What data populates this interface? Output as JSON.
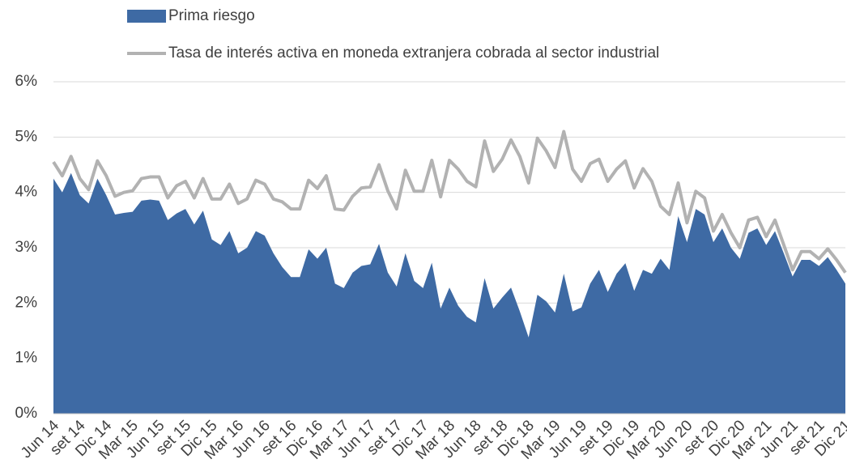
{
  "chart_data": {
    "type": "area-line",
    "categories": [
      "Jun 14",
      null,
      null,
      "set 14",
      null,
      null,
      "Dic 14",
      null,
      null,
      "Mar 15",
      null,
      null,
      "Jun 15",
      null,
      null,
      "set 15",
      null,
      null,
      "Dic 15",
      null,
      null,
      "Mar 16",
      null,
      null,
      "Jun 16",
      null,
      null,
      "set 16",
      null,
      null,
      "Dic 16",
      null,
      null,
      "Mar 17",
      null,
      null,
      "Jun 17",
      null,
      null,
      "set 17",
      null,
      null,
      "Dic 17",
      null,
      null,
      "Mar 18",
      null,
      null,
      "Jun 18",
      null,
      null,
      "set 18",
      null,
      null,
      "Dic 18",
      null,
      null,
      "Mar 19",
      null,
      null,
      "Jun 19",
      null,
      null,
      "set 19",
      null,
      null,
      "Dic 19",
      null,
      null,
      "Mar 20",
      null,
      null,
      "Jun 20",
      null,
      null,
      "set 20",
      null,
      null,
      "Dic 20",
      null,
      null,
      "Mar 21",
      null,
      null,
      "Jun 21",
      null,
      null,
      "set 21",
      null,
      null,
      "Dic 21"
    ],
    "series": [
      {
        "name": "Prima riesgo",
        "color": "#3e6aa4",
        "kind": "area",
        "values": [
          4.25,
          4.0,
          4.35,
          3.95,
          3.8,
          4.25,
          3.95,
          3.6,
          3.63,
          3.65,
          3.85,
          3.87,
          3.85,
          3.5,
          3.62,
          3.7,
          3.42,
          3.67,
          3.15,
          3.05,
          3.3,
          2.9,
          3.0,
          3.3,
          3.22,
          2.9,
          2.65,
          2.47,
          2.47,
          2.97,
          2.8,
          3.0,
          2.35,
          2.27,
          2.55,
          2.67,
          2.7,
          3.07,
          2.55,
          2.3,
          2.9,
          2.4,
          2.27,
          2.73,
          1.9,
          2.28,
          1.95,
          1.75,
          1.65,
          2.45,
          1.9,
          2.1,
          2.28,
          1.85,
          1.38,
          2.15,
          2.03,
          1.83,
          2.53,
          1.85,
          1.92,
          2.35,
          2.6,
          2.2,
          2.53,
          2.72,
          2.22,
          2.6,
          2.53,
          2.8,
          2.6,
          3.57,
          3.1,
          3.7,
          3.6,
          3.1,
          3.35,
          3.0,
          2.8,
          3.27,
          3.35,
          3.05,
          3.3,
          2.9,
          2.48,
          2.78,
          2.78,
          2.67,
          2.83,
          2.6,
          2.35
        ]
      },
      {
        "name": "Tasa de interés activa en moneda extranjera cobrada al sector industrial",
        "color": "#b2b2b2",
        "kind": "line",
        "values": [
          4.55,
          4.3,
          4.65,
          4.25,
          4.05,
          4.57,
          4.3,
          3.93,
          4.0,
          4.03,
          4.25,
          4.28,
          4.28,
          3.9,
          4.12,
          4.2,
          3.9,
          4.25,
          3.88,
          3.88,
          4.15,
          3.8,
          3.88,
          4.22,
          4.15,
          3.88,
          3.83,
          3.7,
          3.7,
          4.22,
          4.07,
          4.3,
          3.7,
          3.68,
          3.93,
          4.08,
          4.1,
          4.5,
          4.03,
          3.7,
          4.4,
          4.02,
          4.02,
          4.58,
          3.92,
          4.58,
          4.42,
          4.2,
          4.1,
          4.93,
          4.38,
          4.6,
          4.95,
          4.65,
          4.17,
          4.98,
          4.75,
          4.45,
          5.1,
          4.42,
          4.2,
          4.52,
          4.6,
          4.2,
          4.42,
          4.57,
          4.08,
          4.43,
          4.2,
          3.75,
          3.6,
          4.17,
          3.45,
          4.02,
          3.9,
          3.3,
          3.6,
          3.27,
          3.0,
          3.5,
          3.55,
          3.2,
          3.5,
          3.05,
          2.6,
          2.93,
          2.93,
          2.8,
          2.98,
          2.78,
          2.55
        ]
      }
    ],
    "ylim": [
      0,
      6
    ],
    "yticks": [
      {
        "value": 0,
        "label": "0%"
      },
      {
        "value": 1,
        "label": "1%"
      },
      {
        "value": 2,
        "label": "2%"
      },
      {
        "value": 3,
        "label": "3%"
      },
      {
        "value": 4,
        "label": "4%"
      },
      {
        "value": 5,
        "label": "5%"
      },
      {
        "value": 6,
        "label": "6%"
      }
    ],
    "grid": true,
    "legend": "top"
  }
}
